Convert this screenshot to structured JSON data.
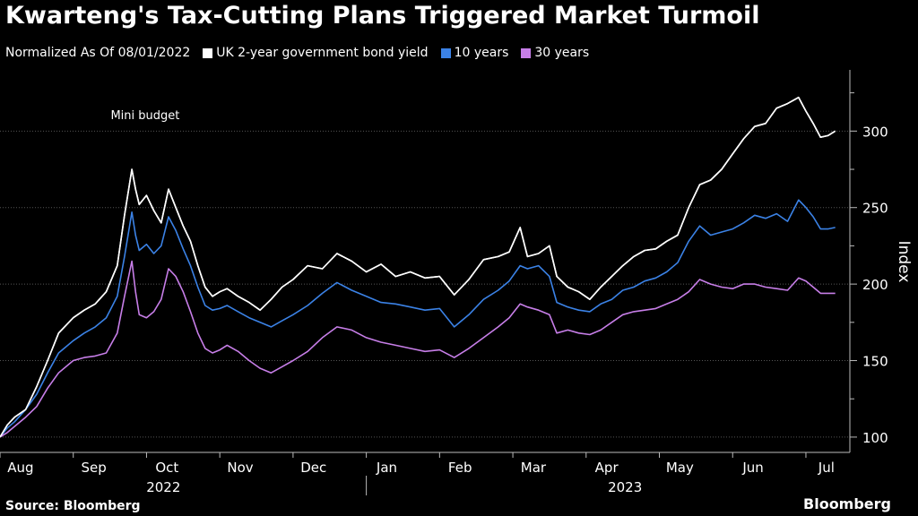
{
  "title": "Kwarteng's Tax-Cutting Plans Triggered Market Turmoil",
  "subtitle": "Normalized As Of 08/01/2022",
  "source": "Source: Bloomberg",
  "brand": "Bloomberg",
  "colors": {
    "uk2y": "#ffffff",
    "uk10y": "#3b82e6",
    "uk30y": "#c77ee8",
    "grid": "#555555",
    "axis": "#bbbbbb"
  },
  "chart_data": {
    "type": "line",
    "title": "Kwarteng's Tax-Cutting Plans Triggered Market Turmoil",
    "ylabel": "Index",
    "ylim": [
      90,
      340
    ],
    "yticks": [
      100,
      150,
      200,
      250,
      300
    ],
    "xlim": [
      0,
      11.6
    ],
    "month_ticks": [
      {
        "label": "Aug",
        "x": 0.5
      },
      {
        "label": "Sep",
        "x": 1.5
      },
      {
        "label": "Oct",
        "x": 2.5
      },
      {
        "label": "Nov",
        "x": 3.5
      },
      {
        "label": "Dec",
        "x": 4.5
      },
      {
        "label": "Jan",
        "x": 5.5
      },
      {
        "label": "Feb",
        "x": 6.5
      },
      {
        "label": "Mar",
        "x": 7.5
      },
      {
        "label": "Apr",
        "x": 8.5
      },
      {
        "label": "May",
        "x": 9.5
      },
      {
        "label": "Jun",
        "x": 10.5
      },
      {
        "label": "Jul",
        "x": 11.5
      }
    ],
    "year_labels": [
      {
        "label": "2022",
        "x": 2.5
      },
      {
        "label": "2023",
        "x": 8.8
      }
    ],
    "year_divider_x": 5.0,
    "annotations": [
      {
        "text": "Mini budget",
        "x": 2.0,
        "y": 305
      }
    ],
    "series": [
      {
        "name": "UK 2-year government bond yield",
        "color": "#ffffff",
        "points": [
          [
            0,
            100
          ],
          [
            0.1,
            108
          ],
          [
            0.2,
            113
          ],
          [
            0.35,
            118
          ],
          [
            0.5,
            133
          ],
          [
            0.65,
            150
          ],
          [
            0.8,
            168
          ],
          [
            1.0,
            178
          ],
          [
            1.15,
            183
          ],
          [
            1.3,
            187
          ],
          [
            1.45,
            195
          ],
          [
            1.6,
            212
          ],
          [
            1.7,
            245
          ],
          [
            1.8,
            275
          ],
          [
            1.85,
            262
          ],
          [
            1.9,
            252
          ],
          [
            2.0,
            258
          ],
          [
            2.1,
            248
          ],
          [
            2.2,
            240
          ],
          [
            2.3,
            262
          ],
          [
            2.4,
            250
          ],
          [
            2.5,
            238
          ],
          [
            2.6,
            228
          ],
          [
            2.7,
            212
          ],
          [
            2.8,
            198
          ],
          [
            2.9,
            192
          ],
          [
            3.0,
            195
          ],
          [
            3.1,
            197
          ],
          [
            3.25,
            192
          ],
          [
            3.4,
            188
          ],
          [
            3.55,
            183
          ],
          [
            3.7,
            190
          ],
          [
            3.85,
            198
          ],
          [
            4.0,
            203
          ],
          [
            4.2,
            212
          ],
          [
            4.4,
            210
          ],
          [
            4.6,
            220
          ],
          [
            4.8,
            215
          ],
          [
            5.0,
            208
          ],
          [
            5.2,
            213
          ],
          [
            5.4,
            205
          ],
          [
            5.6,
            208
          ],
          [
            5.8,
            204
          ],
          [
            6.0,
            205
          ],
          [
            6.2,
            193
          ],
          [
            6.4,
            203
          ],
          [
            6.6,
            216
          ],
          [
            6.8,
            218
          ],
          [
            6.95,
            221
          ],
          [
            7.1,
            237
          ],
          [
            7.2,
            218
          ],
          [
            7.35,
            220
          ],
          [
            7.5,
            225
          ],
          [
            7.6,
            205
          ],
          [
            7.75,
            198
          ],
          [
            7.9,
            195
          ],
          [
            8.05,
            190
          ],
          [
            8.2,
            198
          ],
          [
            8.35,
            205
          ],
          [
            8.5,
            212
          ],
          [
            8.65,
            218
          ],
          [
            8.8,
            222
          ],
          [
            8.95,
            223
          ],
          [
            9.1,
            228
          ],
          [
            9.25,
            232
          ],
          [
            9.4,
            250
          ],
          [
            9.55,
            265
          ],
          [
            9.7,
            268
          ],
          [
            9.85,
            275
          ],
          [
            10.0,
            285
          ],
          [
            10.15,
            295
          ],
          [
            10.3,
            303
          ],
          [
            10.45,
            305
          ],
          [
            10.6,
            315
          ],
          [
            10.75,
            318
          ],
          [
            10.9,
            322
          ],
          [
            11.0,
            313
          ],
          [
            11.1,
            305
          ],
          [
            11.2,
            296
          ],
          [
            11.3,
            297
          ],
          [
            11.4,
            300
          ]
        ]
      },
      {
        "name": "10 years",
        "color": "#3b82e6",
        "points": [
          [
            0,
            100
          ],
          [
            0.1,
            106
          ],
          [
            0.2,
            110
          ],
          [
            0.35,
            118
          ],
          [
            0.5,
            128
          ],
          [
            0.65,
            142
          ],
          [
            0.8,
            155
          ],
          [
            1.0,
            163
          ],
          [
            1.15,
            168
          ],
          [
            1.3,
            172
          ],
          [
            1.45,
            178
          ],
          [
            1.6,
            192
          ],
          [
            1.7,
            218
          ],
          [
            1.8,
            247
          ],
          [
            1.85,
            232
          ],
          [
            1.9,
            222
          ],
          [
            2.0,
            226
          ],
          [
            2.1,
            220
          ],
          [
            2.2,
            225
          ],
          [
            2.3,
            244
          ],
          [
            2.4,
            235
          ],
          [
            2.5,
            223
          ],
          [
            2.6,
            212
          ],
          [
            2.7,
            198
          ],
          [
            2.8,
            186
          ],
          [
            2.9,
            183
          ],
          [
            3.0,
            184
          ],
          [
            3.1,
            186
          ],
          [
            3.25,
            182
          ],
          [
            3.4,
            178
          ],
          [
            3.55,
            175
          ],
          [
            3.7,
            172
          ],
          [
            3.85,
            176
          ],
          [
            4.0,
            180
          ],
          [
            4.2,
            186
          ],
          [
            4.4,
            194
          ],
          [
            4.6,
            201
          ],
          [
            4.8,
            196
          ],
          [
            5.0,
            192
          ],
          [
            5.2,
            188
          ],
          [
            5.4,
            187
          ],
          [
            5.6,
            185
          ],
          [
            5.8,
            183
          ],
          [
            6.0,
            184
          ],
          [
            6.2,
            172
          ],
          [
            6.4,
            180
          ],
          [
            6.6,
            190
          ],
          [
            6.8,
            196
          ],
          [
            6.95,
            202
          ],
          [
            7.1,
            212
          ],
          [
            7.2,
            210
          ],
          [
            7.35,
            212
          ],
          [
            7.5,
            205
          ],
          [
            7.6,
            188
          ],
          [
            7.75,
            185
          ],
          [
            7.9,
            183
          ],
          [
            8.05,
            182
          ],
          [
            8.2,
            187
          ],
          [
            8.35,
            190
          ],
          [
            8.5,
            196
          ],
          [
            8.65,
            198
          ],
          [
            8.8,
            202
          ],
          [
            8.95,
            204
          ],
          [
            9.1,
            208
          ],
          [
            9.25,
            214
          ],
          [
            9.4,
            228
          ],
          [
            9.55,
            238
          ],
          [
            9.7,
            232
          ],
          [
            9.85,
            234
          ],
          [
            10.0,
            236
          ],
          [
            10.15,
            240
          ],
          [
            10.3,
            245
          ],
          [
            10.45,
            243
          ],
          [
            10.6,
            246
          ],
          [
            10.75,
            241
          ],
          [
            10.9,
            255
          ],
          [
            11.0,
            250
          ],
          [
            11.1,
            244
          ],
          [
            11.2,
            236
          ],
          [
            11.3,
            236
          ],
          [
            11.4,
            237
          ]
        ]
      },
      {
        "name": "30 years",
        "color": "#c77ee8",
        "points": [
          [
            0,
            100
          ],
          [
            0.1,
            103
          ],
          [
            0.2,
            107
          ],
          [
            0.35,
            113
          ],
          [
            0.5,
            120
          ],
          [
            0.65,
            132
          ],
          [
            0.8,
            142
          ],
          [
            1.0,
            150
          ],
          [
            1.15,
            152
          ],
          [
            1.3,
            153
          ],
          [
            1.45,
            155
          ],
          [
            1.6,
            168
          ],
          [
            1.7,
            192
          ],
          [
            1.8,
            215
          ],
          [
            1.85,
            195
          ],
          [
            1.9,
            180
          ],
          [
            2.0,
            178
          ],
          [
            2.1,
            182
          ],
          [
            2.2,
            190
          ],
          [
            2.3,
            210
          ],
          [
            2.4,
            205
          ],
          [
            2.5,
            195
          ],
          [
            2.6,
            182
          ],
          [
            2.7,
            168
          ],
          [
            2.8,
            158
          ],
          [
            2.9,
            155
          ],
          [
            3.0,
            157
          ],
          [
            3.1,
            160
          ],
          [
            3.25,
            156
          ],
          [
            3.4,
            150
          ],
          [
            3.55,
            145
          ],
          [
            3.7,
            142
          ],
          [
            3.85,
            146
          ],
          [
            4.0,
            150
          ],
          [
            4.2,
            156
          ],
          [
            4.4,
            165
          ],
          [
            4.6,
            172
          ],
          [
            4.8,
            170
          ],
          [
            5.0,
            165
          ],
          [
            5.2,
            162
          ],
          [
            5.4,
            160
          ],
          [
            5.6,
            158
          ],
          [
            5.8,
            156
          ],
          [
            6.0,
            157
          ],
          [
            6.2,
            152
          ],
          [
            6.4,
            158
          ],
          [
            6.6,
            165
          ],
          [
            6.8,
            172
          ],
          [
            6.95,
            178
          ],
          [
            7.1,
            187
          ],
          [
            7.2,
            185
          ],
          [
            7.35,
            183
          ],
          [
            7.5,
            180
          ],
          [
            7.6,
            168
          ],
          [
            7.75,
            170
          ],
          [
            7.9,
            168
          ],
          [
            8.05,
            167
          ],
          [
            8.2,
            170
          ],
          [
            8.35,
            175
          ],
          [
            8.5,
            180
          ],
          [
            8.65,
            182
          ],
          [
            8.8,
            183
          ],
          [
            8.95,
            184
          ],
          [
            9.1,
            187
          ],
          [
            9.25,
            190
          ],
          [
            9.4,
            195
          ],
          [
            9.55,
            203
          ],
          [
            9.7,
            200
          ],
          [
            9.85,
            198
          ],
          [
            10.0,
            197
          ],
          [
            10.15,
            200
          ],
          [
            10.3,
            200
          ],
          [
            10.45,
            198
          ],
          [
            10.6,
            197
          ],
          [
            10.75,
            196
          ],
          [
            10.9,
            204
          ],
          [
            11.0,
            202
          ],
          [
            11.1,
            198
          ],
          [
            11.2,
            194
          ],
          [
            11.3,
            194
          ],
          [
            11.4,
            194
          ]
        ]
      }
    ]
  }
}
